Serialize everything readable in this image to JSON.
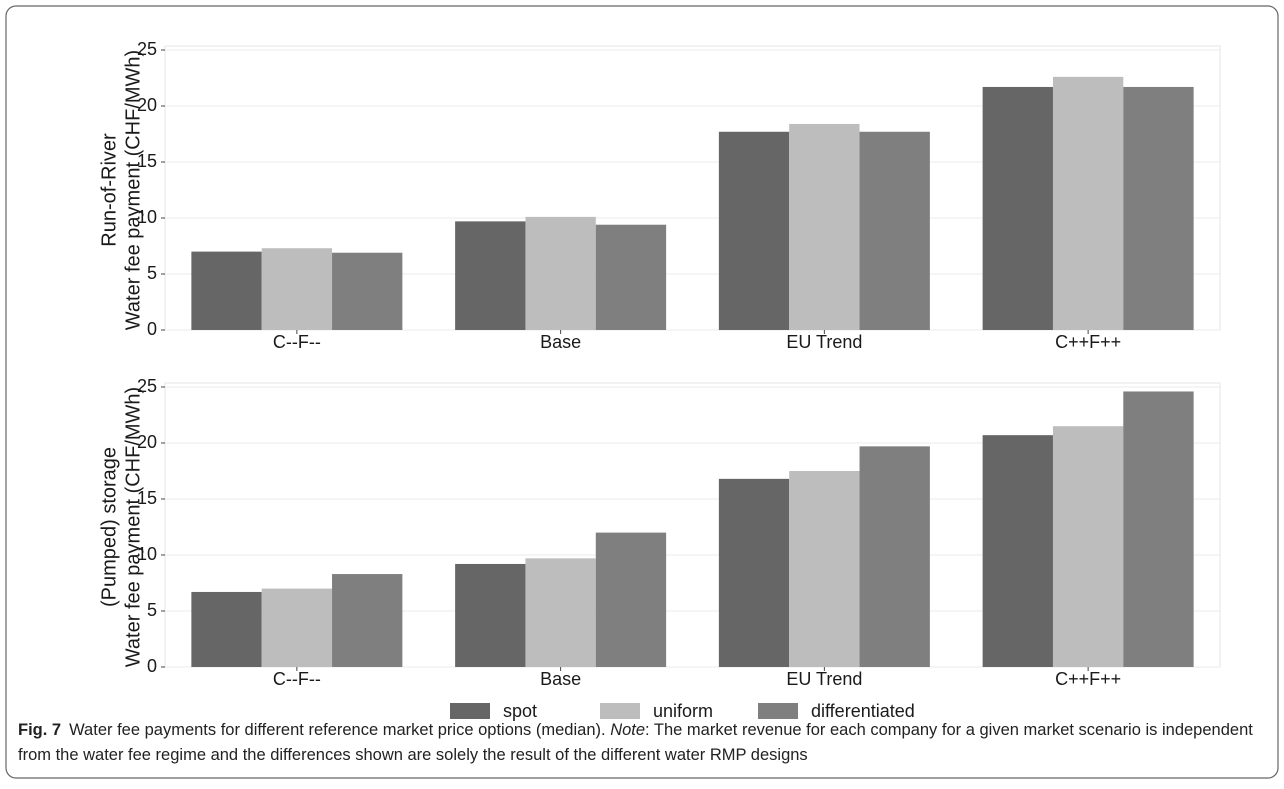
{
  "chart_data": {
    "type": "bar",
    "categories": [
      "C--F--",
      "Base",
      "EU Trend",
      "C++F++"
    ],
    "series": [
      {
        "name": "spot",
        "color": "#666666"
      },
      {
        "name": "uniform",
        "color": "#bdbdbd"
      },
      {
        "name": "differentiated",
        "color": "#7f7f7f"
      }
    ],
    "legend": "bottom",
    "grid": true,
    "ylim": [
      0,
      25
    ],
    "yticks": [
      0,
      5,
      10,
      15,
      20,
      25
    ],
    "panels": [
      {
        "ylabel": [
          "Run-of-River",
          "Water fee payment (CHF/MWh)"
        ],
        "series": [
          {
            "values": [
              7.0,
              9.7,
              17.7,
              21.7
            ]
          },
          {
            "values": [
              7.3,
              10.1,
              18.4,
              22.6
            ]
          },
          {
            "values": [
              6.9,
              9.4,
              17.7,
              21.7
            ]
          }
        ]
      },
      {
        "ylabel": [
          "(Pumped) storage",
          "Water fee payment (CHF/MWh)"
        ],
        "series": [
          {
            "values": [
              6.7,
              9.2,
              16.8,
              20.7
            ]
          },
          {
            "values": [
              7.0,
              9.7,
              17.5,
              21.5
            ]
          },
          {
            "values": [
              8.3,
              12.0,
              19.7,
              24.6
            ]
          }
        ]
      }
    ]
  },
  "caption": {
    "label": "Fig. 7",
    "text": "Water fee payments for different reference market price options (median).",
    "note_label": "Note",
    "note": ": The market revenue for each company for a given market scenario is independent from the water fee regime and the differences shown are solely the result of the different water RMP designs"
  }
}
